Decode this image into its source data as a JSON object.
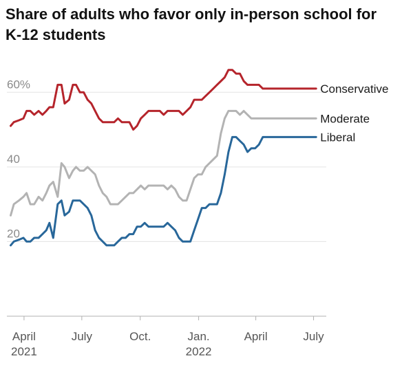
{
  "chart_data": {
    "type": "line",
    "title": "Share of adults who favor only in-person school for K-12 students",
    "ylim": [
      0,
      70
    ],
    "yticks": [
      {
        "value": 20,
        "label": "20"
      },
      {
        "value": 40,
        "label": "40"
      },
      {
        "value": 60,
        "label": "60%"
      }
    ],
    "xlim": [
      "2021-03-05",
      "2022-07-21"
    ],
    "xticks": [
      {
        "date": "2021-04-01",
        "label": "April",
        "sublabel": "2021"
      },
      {
        "date": "2021-07-01",
        "label": "July",
        "sublabel": ""
      },
      {
        "date": "2021-10-01",
        "label": "Oct.",
        "sublabel": ""
      },
      {
        "date": "2022-01-01",
        "label": "Jan.",
        "sublabel": "2022"
      },
      {
        "date": "2022-04-01",
        "label": "April",
        "sublabel": ""
      },
      {
        "date": "2022-07-01",
        "label": "July",
        "sublabel": ""
      }
    ],
    "grid": true,
    "x": [
      "2021-03-11",
      "2021-03-16",
      "2021-03-24",
      "2021-03-31",
      "2021-04-05",
      "2021-04-11",
      "2021-04-17",
      "2021-04-24",
      "2021-04-30",
      "2021-05-06",
      "2021-05-11",
      "2021-05-17",
      "2021-05-24",
      "2021-05-30",
      "2021-06-04",
      "2021-06-11",
      "2021-06-17",
      "2021-06-22",
      "2021-06-28",
      "2021-07-04",
      "2021-07-10",
      "2021-07-16",
      "2021-07-22",
      "2021-07-28",
      "2021-08-03",
      "2021-08-09",
      "2021-08-15",
      "2021-08-21",
      "2021-08-27",
      "2021-09-02",
      "2021-09-08",
      "2021-09-14",
      "2021-09-20",
      "2021-09-26",
      "2021-10-02",
      "2021-10-08",
      "2021-10-14",
      "2021-10-20",
      "2021-10-26",
      "2021-11-01",
      "2021-11-07",
      "2021-11-13",
      "2021-11-19",
      "2021-11-25",
      "2021-12-01",
      "2021-12-07",
      "2021-12-13",
      "2021-12-19",
      "2021-12-25",
      "2021-12-31",
      "2022-01-06",
      "2022-01-12",
      "2022-01-18",
      "2022-01-24",
      "2022-01-30",
      "2022-02-05",
      "2022-02-11",
      "2022-02-17",
      "2022-02-23",
      "2022-03-01",
      "2022-03-07",
      "2022-03-13",
      "2022-03-19",
      "2022-03-25",
      "2022-03-31",
      "2022-04-06",
      "2022-04-12",
      "2022-04-18",
      "2022-04-24",
      "2022-04-30",
      "2022-05-06",
      "2022-05-12",
      "2022-05-18",
      "2022-05-24",
      "2022-05-30",
      "2022-06-05",
      "2022-06-11",
      "2022-06-17",
      "2022-06-23",
      "2022-06-29",
      "2022-07-05"
    ],
    "series": [
      {
        "name": "Conservative",
        "color": "#b5242b",
        "values": [
          51,
          52,
          52.5,
          53,
          55,
          55,
          54,
          55,
          54,
          55,
          56,
          56,
          62,
          62,
          57,
          58,
          62,
          62,
          60,
          60,
          58,
          57,
          55,
          53,
          52,
          52,
          52,
          52,
          53,
          52,
          52,
          52,
          50,
          51,
          53,
          54,
          55,
          55,
          55,
          55,
          54,
          55,
          55,
          55,
          55,
          54,
          55,
          56,
          58,
          58,
          58,
          59,
          60,
          61,
          62,
          63,
          64,
          66,
          66,
          65,
          65,
          63,
          62,
          62,
          62,
          62,
          61,
          61,
          61,
          61,
          61,
          61,
          61,
          61,
          61,
          61,
          61,
          61,
          61,
          61,
          61
        ],
        "end_label": "Conservative"
      },
      {
        "name": "Moderate",
        "color": "#b3b3b3",
        "values": [
          27,
          30,
          31,
          32,
          33,
          30,
          30,
          32,
          31,
          33,
          35,
          36,
          32,
          41,
          40,
          37,
          39,
          40,
          39,
          39,
          40,
          39,
          38,
          35,
          33,
          32,
          30,
          30,
          30,
          31,
          32,
          33,
          33,
          34,
          35,
          34,
          35,
          35,
          35,
          35,
          35,
          34,
          35,
          34,
          32,
          31,
          31,
          34,
          37,
          38,
          38,
          40,
          41,
          42,
          43,
          49,
          53,
          55,
          55,
          55,
          54,
          55,
          54,
          53,
          53,
          53,
          53,
          53,
          53,
          53,
          53,
          53,
          53,
          53,
          53,
          53,
          53,
          53,
          53,
          53,
          53
        ],
        "end_label": "Moderate"
      },
      {
        "name": "Liberal",
        "color": "#28679a",
        "values": [
          19,
          20,
          20.5,
          21,
          20,
          20,
          21,
          21,
          22,
          23,
          25,
          21,
          30,
          31,
          27,
          28,
          31,
          31,
          31,
          30,
          29,
          27,
          23,
          21,
          20,
          19,
          19,
          19,
          20,
          21,
          21,
          22,
          22,
          24,
          24,
          25,
          24,
          24,
          24,
          24,
          24,
          25,
          24,
          23,
          21,
          20,
          20,
          20,
          23,
          26,
          29,
          29,
          30,
          30,
          30,
          33,
          38,
          44,
          48,
          48,
          47,
          46,
          44,
          45,
          45,
          46,
          48,
          48,
          48,
          48,
          48,
          48,
          48,
          48,
          48,
          48,
          48,
          48,
          48,
          48,
          48
        ],
        "end_label": "Liberal"
      }
    ]
  }
}
